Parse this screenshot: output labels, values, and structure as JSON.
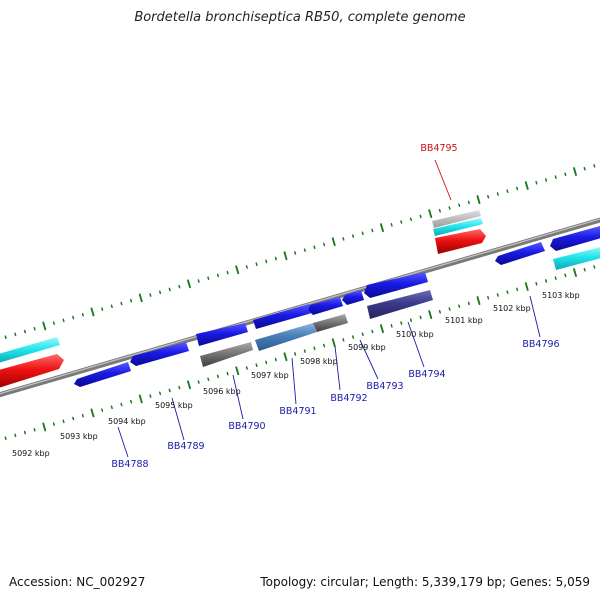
{
  "title": "Bordetella bronchiseptica RB50, complete genome",
  "accession": "Accession: NC_002927",
  "topology": "Topology: circular; Length: 5,339,179 bp; Genes: 5,059",
  "colors": {
    "gene_forward": "#1a1ae6",
    "gene_highlight": "#ee1111",
    "gene_cyan": "#22e6ee",
    "gene_gray": "#777777",
    "gene_navy": "#3d3a8c",
    "label_normal": "#1a1aa8",
    "label_highlight": "#cc1111",
    "tick_color": "#1e7a1e"
  },
  "scale": {
    "unit": "kbp",
    "ticks": [
      "5092 kbp",
      "5093 kbp",
      "5094 kbp",
      "5095 kbp",
      "5096 kbp",
      "5097 kbp",
      "5098 kbp",
      "5099 kbp",
      "5100 kbp",
      "5101 kbp",
      "5102 kbp",
      "5103 kbp"
    ]
  },
  "gene_labels": [
    "BB4788",
    "BB4789",
    "BB4790",
    "BB4791",
    "BB4792",
    "BB4793",
    "BB4794",
    "BB4795",
    "BB4796"
  ],
  "highlighted_gene": "BB4795"
}
